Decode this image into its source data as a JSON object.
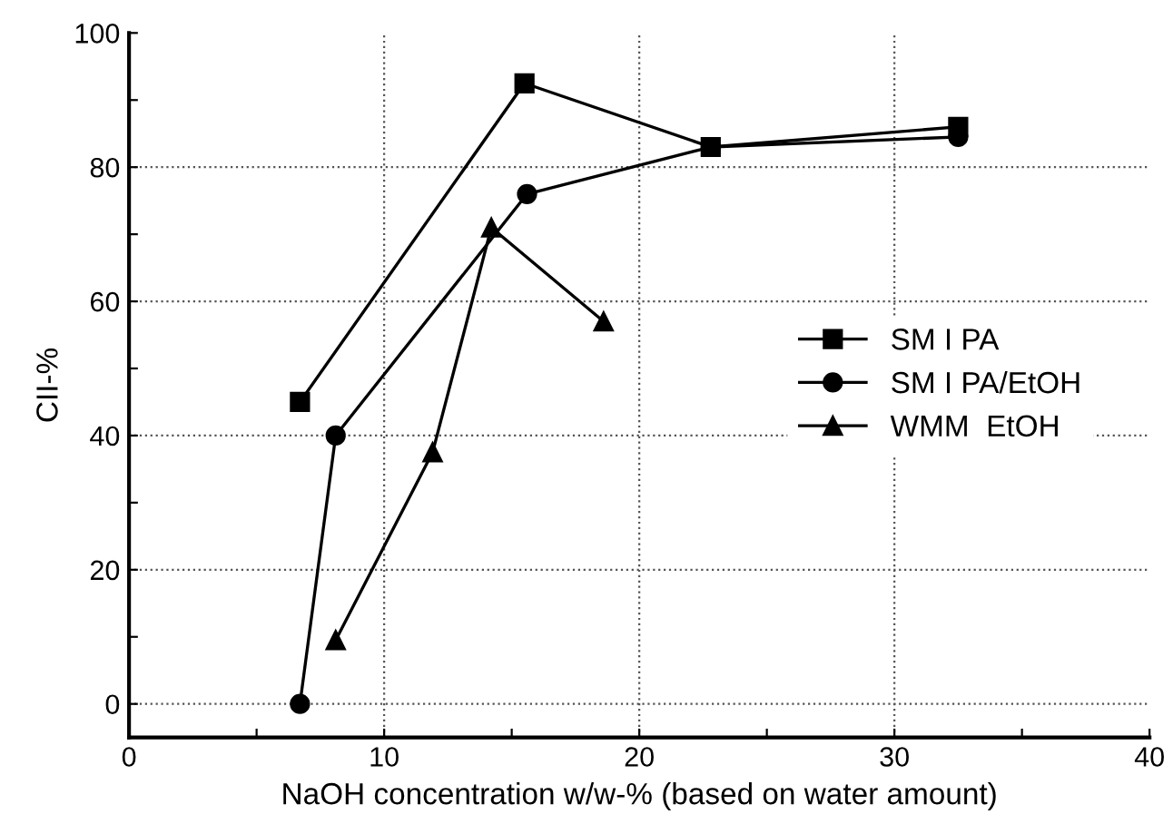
{
  "chart_data": {
    "type": "line",
    "xlabel": "NaOH concentration w/w-% (based on water amount)",
    "ylabel": "CII-%",
    "xlim": [
      0,
      40
    ],
    "ylim": [
      -5,
      100
    ],
    "xticks": [
      0,
      {
        "value": 5,
        "label": null
      },
      10,
      {
        "value": 15,
        "label": null
      },
      20,
      {
        "value": 25,
        "label": null
      },
      30,
      {
        "value": 35,
        "label": null
      },
      40
    ],
    "yticks": [
      0,
      {
        "value": 10,
        "label": null
      },
      20,
      {
        "value": 30,
        "label": null
      },
      40,
      {
        "value": 50,
        "label": null
      },
      60,
      {
        "value": 70,
        "label": null
      },
      80,
      {
        "value": 90,
        "label": null
      },
      100
    ],
    "grid": true,
    "legend": "right",
    "line_style": "solid",
    "series": [
      {
        "name": "SM I PA",
        "color": "#000000",
        "marker": "square",
        "x": [
          6.7,
          15.5,
          22.8,
          32.5
        ],
        "values": [
          45,
          92.5,
          83,
          86
        ]
      },
      {
        "name": "SM I PA/EtOH",
        "color": "#000000",
        "marker": "circle",
        "x": [
          6.7,
          8.1,
          15.6,
          22.8,
          32.5
        ],
        "values": [
          0,
          40,
          76,
          83,
          84.5
        ]
      },
      {
        "name": "WMM  EtOH",
        "color": "#000000",
        "marker": "triangle",
        "x": [
          8.1,
          11.9,
          14.2,
          18.6
        ],
        "values": [
          9.5,
          37.5,
          71,
          57
        ]
      }
    ]
  }
}
